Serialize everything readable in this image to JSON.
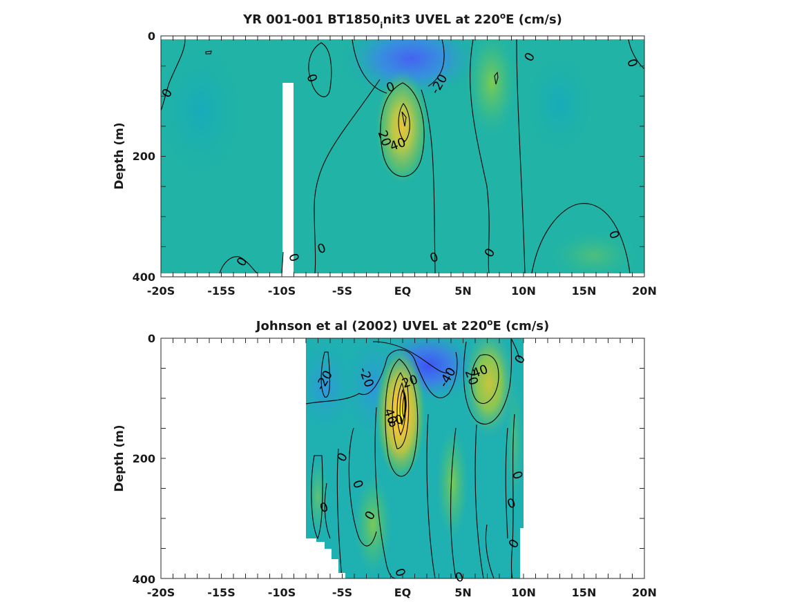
{
  "chart_data": [
    {
      "type": "heatmap",
      "title_main": "YR 001-001 BT1850",
      "title_sub": "i",
      "title_rest": "nit3 UVEL at 220",
      "title_sup": "o",
      "title_end": "E (cm/s)",
      "ylabel": "Depth (m)",
      "xlabel": "",
      "xlim": [
        -20,
        20
      ],
      "ylim": [
        0,
        400
      ],
      "y_reversed": true,
      "x_ticks": [
        -20,
        -15,
        -10,
        -5,
        0,
        5,
        10,
        15,
        20
      ],
      "x_tick_labels": [
        "-20S",
        "-15S",
        "-10S",
        "-5S",
        "EQ",
        "5N",
        "10N",
        "15N",
        "20N"
      ],
      "y_tick_labels": [
        "0",
        "200",
        "400"
      ],
      "data_extent": {
        "lat": [
          -20,
          20
        ],
        "depth": [
          5,
          395
        ]
      },
      "masked_column": {
        "lat": [
          -10,
          -9.2
        ],
        "depth": [
          80,
          400
        ]
      },
      "features": [
        {
          "kind": "eastward core",
          "lat": 0,
          "depth": 160,
          "value": 40
        },
        {
          "kind": "westward surface",
          "lat": 2,
          "depth": 20,
          "value": -20
        },
        {
          "kind": "eastward countercurrent",
          "lat": 7.5,
          "depth": 60,
          "value": 15
        }
      ],
      "contour_labels": [
        {
          "text": "0",
          "lat": -19.5,
          "depth": 95
        },
        {
          "text": "0",
          "lat": -7.5,
          "depth": 70
        },
        {
          "text": "0",
          "lat": -1,
          "depth": 85
        },
        {
          "text": "-20",
          "lat": 3,
          "depth": 80
        },
        {
          "text": "20",
          "lat": -1.5,
          "depth": 170
        },
        {
          "text": "40",
          "lat": -0.4,
          "depth": 180
        },
        {
          "text": "0",
          "lat": 10.5,
          "depth": 35
        },
        {
          "text": "0",
          "lat": 19,
          "depth": 45
        },
        {
          "text": "0",
          "lat": -6.7,
          "depth": 353
        },
        {
          "text": "0",
          "lat": -13.3,
          "depth": 375
        },
        {
          "text": "0",
          "lat": -9,
          "depth": 368
        },
        {
          "text": "0",
          "lat": 2.6,
          "depth": 368
        },
        {
          "text": "0",
          "lat": 7.2,
          "depth": 360
        },
        {
          "text": "0",
          "lat": 17.5,
          "depth": 330
        }
      ]
    },
    {
      "type": "heatmap",
      "title_main": "Johnson et al (2002) UVEL at 220",
      "title_sup": "o",
      "title_end": "E (cm/s)",
      "ylabel": "Depth (m)",
      "xlabel": "",
      "xlim": [
        -20,
        20
      ],
      "ylim": [
        0,
        400
      ],
      "y_reversed": true,
      "x_ticks": [
        -20,
        -15,
        -10,
        -5,
        0,
        5,
        10,
        15,
        20
      ],
      "x_tick_labels": [
        "-20S",
        "-15S",
        "-10S",
        "-5S",
        "EQ",
        "5N",
        "10N",
        "15N",
        "20N"
      ],
      "y_tick_labels": [
        "0",
        "200",
        "400"
      ],
      "data_extent": {
        "lat": [
          -8,
          10
        ],
        "depth": [
          0,
          400
        ]
      },
      "features": [
        {
          "kind": "eastward core",
          "lat": -0.5,
          "depth": 110,
          "value": 80
        },
        {
          "kind": "westward surface",
          "lat": 2,
          "depth": 30,
          "value": -40
        },
        {
          "kind": "eastward countercurrent",
          "lat": 7,
          "depth": 80,
          "value": 40
        }
      ],
      "contour_labels": [
        {
          "text": "-20",
          "lat": -6.5,
          "depth": 70
        },
        {
          "text": "-20",
          "lat": -3,
          "depth": 65
        },
        {
          "text": "20",
          "lat": 0.6,
          "depth": 72
        },
        {
          "text": "-40",
          "lat": 3.7,
          "depth": 65
        },
        {
          "text": "20",
          "lat": 5.7,
          "depth": 65
        },
        {
          "text": "40",
          "lat": 6.4,
          "depth": 55
        },
        {
          "text": "0",
          "lat": 9.7,
          "depth": 35
        },
        {
          "text": "40",
          "lat": -1,
          "depth": 130
        },
        {
          "text": "80",
          "lat": -0.6,
          "depth": 138
        },
        {
          "text": "0",
          "lat": -5,
          "depth": 198
        },
        {
          "text": "0",
          "lat": -3.7,
          "depth": 243
        },
        {
          "text": "0",
          "lat": -6.5,
          "depth": 282
        },
        {
          "text": "0",
          "lat": -2.7,
          "depth": 295
        },
        {
          "text": "0",
          "lat": 9.5,
          "depth": 228
        },
        {
          "text": "0",
          "lat": 9.0,
          "depth": 275
        },
        {
          "text": "0",
          "lat": 9.2,
          "depth": 342
        },
        {
          "text": "0",
          "lat": -0.2,
          "depth": 390
        },
        {
          "text": "0",
          "lat": 4.7,
          "depth": 398
        }
      ]
    }
  ]
}
